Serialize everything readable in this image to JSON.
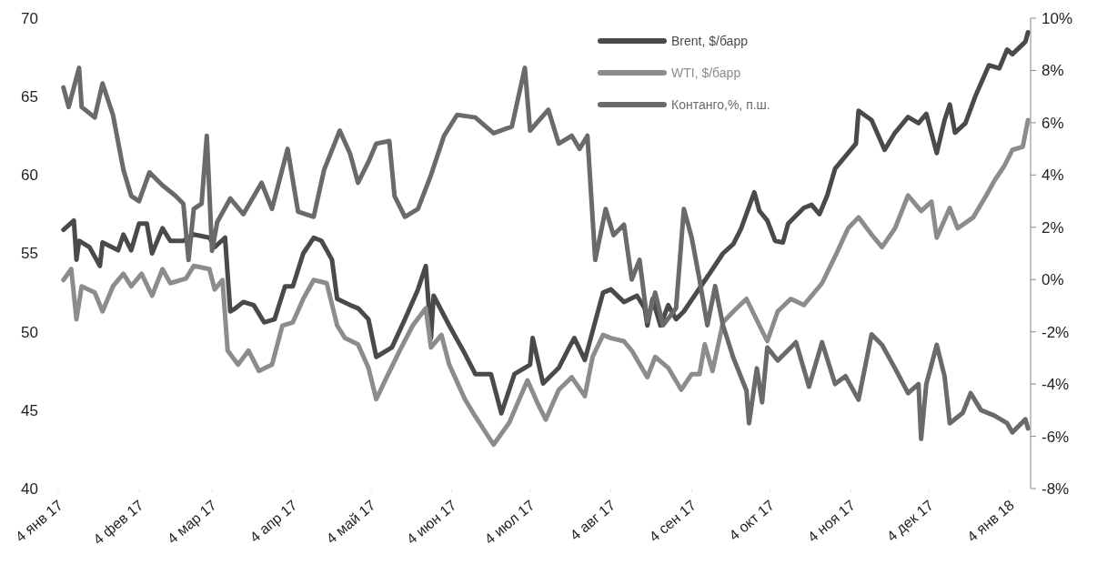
{
  "chart_data": {
    "type": "line",
    "legend": "top",
    "line_style": "solid",
    "marker": "none",
    "grid": false,
    "xlim": [
      "2017-01-04",
      "2018-01-12"
    ],
    "xticks": [
      {
        "value": "2017-01-04",
        "label": "4 янв 17"
      },
      {
        "value": "2017-02-04",
        "label": "4 фев 17"
      },
      {
        "value": "2017-03-04",
        "label": "4 мар 17"
      },
      {
        "value": "2017-04-04",
        "label": "4 апр 17"
      },
      {
        "value": "2017-05-04",
        "label": "4 май 17"
      },
      {
        "value": "2017-06-04",
        "label": "4 июн 17"
      },
      {
        "value": "2017-07-04",
        "label": "4 июл 17"
      },
      {
        "value": "2017-08-04",
        "label": "4 авг 17"
      },
      {
        "value": "2017-09-04",
        "label": "4 сен 17"
      },
      {
        "value": "2017-10-04",
        "label": "4 окт 17"
      },
      {
        "value": "2017-11-04",
        "label": "4 ноя 17"
      },
      {
        "value": "2017-12-04",
        "label": "4 дек 17"
      },
      {
        "value": "2018-01-04",
        "label": "4 янв 18"
      }
    ],
    "ylim": [
      40,
      70
    ],
    "yticks": [
      40,
      45,
      50,
      55,
      60,
      65,
      70
    ],
    "y2lim": [
      -8,
      10
    ],
    "y2ticks": [
      {
        "value": -8,
        "label": "-8%"
      },
      {
        "value": -6,
        "label": "-6%"
      },
      {
        "value": -4,
        "label": "-4%"
      },
      {
        "value": -2,
        "label": "-2%"
      },
      {
        "value": 0,
        "label": "0%"
      },
      {
        "value": 2,
        "label": "2%"
      },
      {
        "value": 4,
        "label": "4%"
      },
      {
        "value": 6,
        "label": "6%"
      },
      {
        "value": 8,
        "label": "8%"
      },
      {
        "value": 10,
        "label": "10%"
      }
    ],
    "series": [
      {
        "name": "Brent, $/барр",
        "color": "#4a4a4a",
        "x": [
          "2017-01-06",
          "2017-01-10",
          "2017-01-11",
          "2017-01-12",
          "2017-01-16",
          "2017-01-20",
          "2017-01-21",
          "2017-01-27",
          "2017-01-29",
          "2017-02-01",
          "2017-02-04",
          "2017-02-07",
          "2017-02-09",
          "2017-02-13",
          "2017-02-16",
          "2017-02-21",
          "2017-02-25",
          "2017-03-03",
          "2017-03-05",
          "2017-03-09",
          "2017-03-11",
          "2017-03-13",
          "2017-03-16",
          "2017-03-20",
          "2017-03-24",
          "2017-03-28",
          "2017-04-01",
          "2017-04-04",
          "2017-04-08",
          "2017-04-12",
          "2017-04-15",
          "2017-04-19",
          "2017-04-21",
          "2017-04-26",
          "2017-04-29",
          "2017-05-03",
          "2017-05-06",
          "2017-05-12",
          "2017-05-17",
          "2017-05-22",
          "2017-05-25",
          "2017-05-27",
          "2017-05-28",
          "2017-06-03",
          "2017-06-09",
          "2017-06-13",
          "2017-06-19",
          "2017-06-23",
          "2017-06-28",
          "2017-07-04",
          "2017-07-05",
          "2017-07-09",
          "2017-07-15",
          "2017-07-19",
          "2017-07-21",
          "2017-07-25",
          "2017-08-01",
          "2017-08-04",
          "2017-08-09",
          "2017-08-14",
          "2017-08-17",
          "2017-08-18",
          "2017-08-20",
          "2017-08-23",
          "2017-08-26",
          "2017-08-29",
          "2017-09-01",
          "2017-09-12",
          "2017-09-16",
          "2017-09-20",
          "2017-09-23",
          "2017-09-28",
          "2017-09-30",
          "2017-10-03",
          "2017-10-06",
          "2017-10-09",
          "2017-10-11",
          "2017-10-17",
          "2017-10-20",
          "2017-10-23",
          "2017-10-26",
          "2017-10-29",
          "2017-11-02",
          "2017-11-06",
          "2017-11-07",
          "2017-11-12",
          "2017-11-17",
          "2017-11-21",
          "2017-11-26",
          "2017-11-30",
          "2017-12-03",
          "2017-12-07",
          "2017-12-10",
          "2017-12-12",
          "2017-12-14",
          "2017-12-18",
          "2017-12-22",
          "2017-12-27",
          "2017-12-31",
          "2018-01-03",
          "2018-01-05",
          "2018-01-10",
          "2018-01-11"
        ],
        "values": [
          56.5,
          57.1,
          54.6,
          55.8,
          55.4,
          54.2,
          55.7,
          55.2,
          56.2,
          55.2,
          56.9,
          56.9,
          55.0,
          56.6,
          55.8,
          55.8,
          56.2,
          56.0,
          55.4,
          56.0,
          51.3,
          51.5,
          51.9,
          51.7,
          50.6,
          50.8,
          52.9,
          52.9,
          55.0,
          56.0,
          55.8,
          54.6,
          52.1,
          51.7,
          51.5,
          50.8,
          48.4,
          49.0,
          50.8,
          52.7,
          54.2,
          49.6,
          52.3,
          50.4,
          48.6,
          47.3,
          47.3,
          44.8,
          47.3,
          47.9,
          49.6,
          46.7,
          47.7,
          49.0,
          49.6,
          48.2,
          52.5,
          52.7,
          51.9,
          52.3,
          51.5,
          50.4,
          52.1,
          50.4,
          51.7,
          50.8,
          51.3,
          54.0,
          55.0,
          55.6,
          56.6,
          58.9,
          57.7,
          57.1,
          55.8,
          55.7,
          56.9,
          57.9,
          58.1,
          57.5,
          58.7,
          60.4,
          61.2,
          62.0,
          64.1,
          63.5,
          61.6,
          62.7,
          63.7,
          63.3,
          63.9,
          61.4,
          63.5,
          64.5,
          62.7,
          63.3,
          65.1,
          67.0,
          66.8,
          68.0,
          67.7,
          68.5,
          69.1
        ]
      },
      {
        "name": "WTI, $/барр",
        "color": "#8c8c8c",
        "x": [
          "2017-01-06",
          "2017-01-09",
          "2017-01-11",
          "2017-01-13",
          "2017-01-18",
          "2017-01-21",
          "2017-01-25",
          "2017-01-29",
          "2017-02-01",
          "2017-02-05",
          "2017-02-09",
          "2017-02-13",
          "2017-02-16",
          "2017-02-22",
          "2017-02-25",
          "2017-03-03",
          "2017-03-05",
          "2017-03-08",
          "2017-03-10",
          "2017-03-14",
          "2017-03-18",
          "2017-03-22",
          "2017-03-27",
          "2017-03-31",
          "2017-04-04",
          "2017-04-08",
          "2017-04-12",
          "2017-04-17",
          "2017-04-21",
          "2017-04-24",
          "2017-04-29",
          "2017-05-03",
          "2017-05-06",
          "2017-05-10",
          "2017-05-15",
          "2017-05-20",
          "2017-05-25",
          "2017-05-27",
          "2017-05-31",
          "2017-06-03",
          "2017-06-09",
          "2017-06-13",
          "2017-06-20",
          "2017-06-26",
          "2017-07-03",
          "2017-07-07",
          "2017-07-10",
          "2017-07-15",
          "2017-07-20",
          "2017-07-25",
          "2017-07-28",
          "2017-08-01",
          "2017-08-04",
          "2017-08-09",
          "2017-08-12",
          "2017-08-18",
          "2017-08-21",
          "2017-08-26",
          "2017-08-31",
          "2017-09-04",
          "2017-09-07",
          "2017-09-09",
          "2017-09-12",
          "2017-09-16",
          "2017-09-20",
          "2017-09-25",
          "2017-09-30",
          "2017-10-03",
          "2017-10-07",
          "2017-10-12",
          "2017-10-17",
          "2017-10-24",
          "2017-10-29",
          "2017-11-03",
          "2017-11-07",
          "2017-11-12",
          "2017-11-16",
          "2017-11-21",
          "2017-11-26",
          "2017-12-01",
          "2017-12-05",
          "2017-12-07",
          "2017-12-12",
          "2017-12-15",
          "2017-12-21",
          "2017-12-26",
          "2017-12-29",
          "2018-01-02",
          "2018-01-05",
          "2018-01-09",
          "2018-01-11"
        ],
        "values": [
          53.3,
          54.0,
          50.8,
          52.9,
          52.5,
          51.3,
          52.9,
          53.7,
          52.9,
          53.7,
          52.3,
          54.0,
          53.1,
          53.4,
          54.2,
          54.0,
          52.7,
          53.3,
          48.8,
          47.9,
          48.8,
          47.5,
          47.9,
          50.4,
          50.6,
          52.1,
          53.3,
          53.1,
          50.4,
          49.6,
          49.2,
          47.7,
          45.7,
          47.1,
          48.8,
          50.4,
          51.5,
          49.0,
          49.8,
          47.9,
          45.7,
          44.6,
          42.8,
          44.2,
          46.9,
          45.4,
          44.4,
          46.3,
          47.1,
          45.9,
          48.4,
          49.8,
          49.6,
          49.4,
          48.8,
          47.1,
          48.4,
          47.7,
          46.3,
          47.3,
          47.3,
          49.2,
          47.5,
          50.6,
          51.3,
          52.1,
          50.4,
          49.4,
          51.3,
          52.1,
          51.7,
          53.1,
          54.8,
          56.6,
          57.3,
          56.2,
          55.4,
          56.6,
          58.7,
          57.7,
          58.3,
          56.0,
          57.9,
          56.6,
          57.3,
          58.7,
          59.6,
          60.6,
          61.6,
          61.8,
          63.5
        ]
      },
      {
        "name": "Контанго,%, п.ш.",
        "color": "#6a6a6a",
        "axis": "y2",
        "x": [
          "2017-01-06",
          "2017-01-08",
          "2017-01-12",
          "2017-01-13",
          "2017-01-18",
          "2017-01-21",
          "2017-01-25",
          "2017-01-29",
          "2017-02-01",
          "2017-02-04",
          "2017-02-08",
          "2017-02-13",
          "2017-02-18",
          "2017-02-21",
          "2017-02-23",
          "2017-02-25",
          "2017-02-28",
          "2017-03-02",
          "2017-03-04",
          "2017-03-06",
          "2017-03-11",
          "2017-03-16",
          "2017-03-23",
          "2017-03-27",
          "2017-04-02",
          "2017-04-06",
          "2017-04-12",
          "2017-04-16",
          "2017-04-22",
          "2017-04-26",
          "2017-04-29",
          "2017-05-03",
          "2017-05-06",
          "2017-05-11",
          "2017-05-13",
          "2017-05-17",
          "2017-05-22",
          "2017-05-27",
          "2017-06-01",
          "2017-06-06",
          "2017-06-13",
          "2017-06-20",
          "2017-06-27",
          "2017-07-02",
          "2017-07-04",
          "2017-07-11",
          "2017-07-15",
          "2017-07-20",
          "2017-07-23",
          "2017-07-26",
          "2017-07-29",
          "2017-08-02",
          "2017-08-05",
          "2017-08-09",
          "2017-08-12",
          "2017-08-15",
          "2017-08-18",
          "2017-08-21",
          "2017-08-24",
          "2017-08-29",
          "2017-09-01",
          "2017-09-04",
          "2017-09-07",
          "2017-09-10",
          "2017-09-13",
          "2017-09-16",
          "2017-09-20",
          "2017-09-25",
          "2017-09-26",
          "2017-09-29",
          "2017-10-01",
          "2017-10-03",
          "2017-10-07",
          "2017-10-14",
          "2017-10-19",
          "2017-10-24",
          "2017-10-29",
          "2017-11-02",
          "2017-11-07",
          "2017-11-12",
          "2017-11-16",
          "2017-11-21",
          "2017-11-26",
          "2017-11-30",
          "2017-12-01",
          "2017-12-03",
          "2017-12-07",
          "2017-12-10",
          "2017-12-12",
          "2017-12-17",
          "2017-12-20",
          "2017-12-24",
          "2017-12-29",
          "2018-01-03",
          "2018-01-05",
          "2018-01-10",
          "2018-01-11"
        ],
        "values": [
          7.35,
          6.6,
          8.1,
          6.6,
          6.2,
          7.5,
          6.3,
          4.2,
          3.2,
          3.0,
          4.1,
          3.6,
          3.2,
          2.9,
          0.75,
          2.7,
          2.9,
          5.5,
          1.1,
          2.2,
          3.1,
          2.5,
          3.7,
          2.7,
          5.0,
          2.6,
          2.4,
          4.2,
          5.7,
          4.8,
          3.7,
          4.5,
          5.2,
          5.3,
          3.2,
          2.4,
          2.7,
          4.0,
          5.5,
          6.3,
          6.2,
          5.6,
          5.85,
          8.1,
          5.7,
          6.5,
          5.2,
          5.5,
          5.0,
          5.5,
          0.75,
          2.7,
          1.7,
          2.1,
          0.0,
          0.75,
          -1.6,
          -0.5,
          -1.75,
          -1.1,
          2.7,
          1.6,
          0.0,
          -1.75,
          -0.25,
          -1.75,
          -3.0,
          -4.25,
          -5.5,
          -3.4,
          -4.7,
          -2.6,
          -3.1,
          -2.4,
          -4.1,
          -2.4,
          -4.0,
          -3.7,
          -4.6,
          -2.1,
          -2.5,
          -3.4,
          -4.35,
          -4.0,
          -6.1,
          -4.0,
          -2.5,
          -3.7,
          -5.5,
          -5.1,
          -4.35,
          -5.0,
          -5.2,
          -5.5,
          -5.85,
          -5.35,
          -5.7
        ]
      }
    ]
  }
}
